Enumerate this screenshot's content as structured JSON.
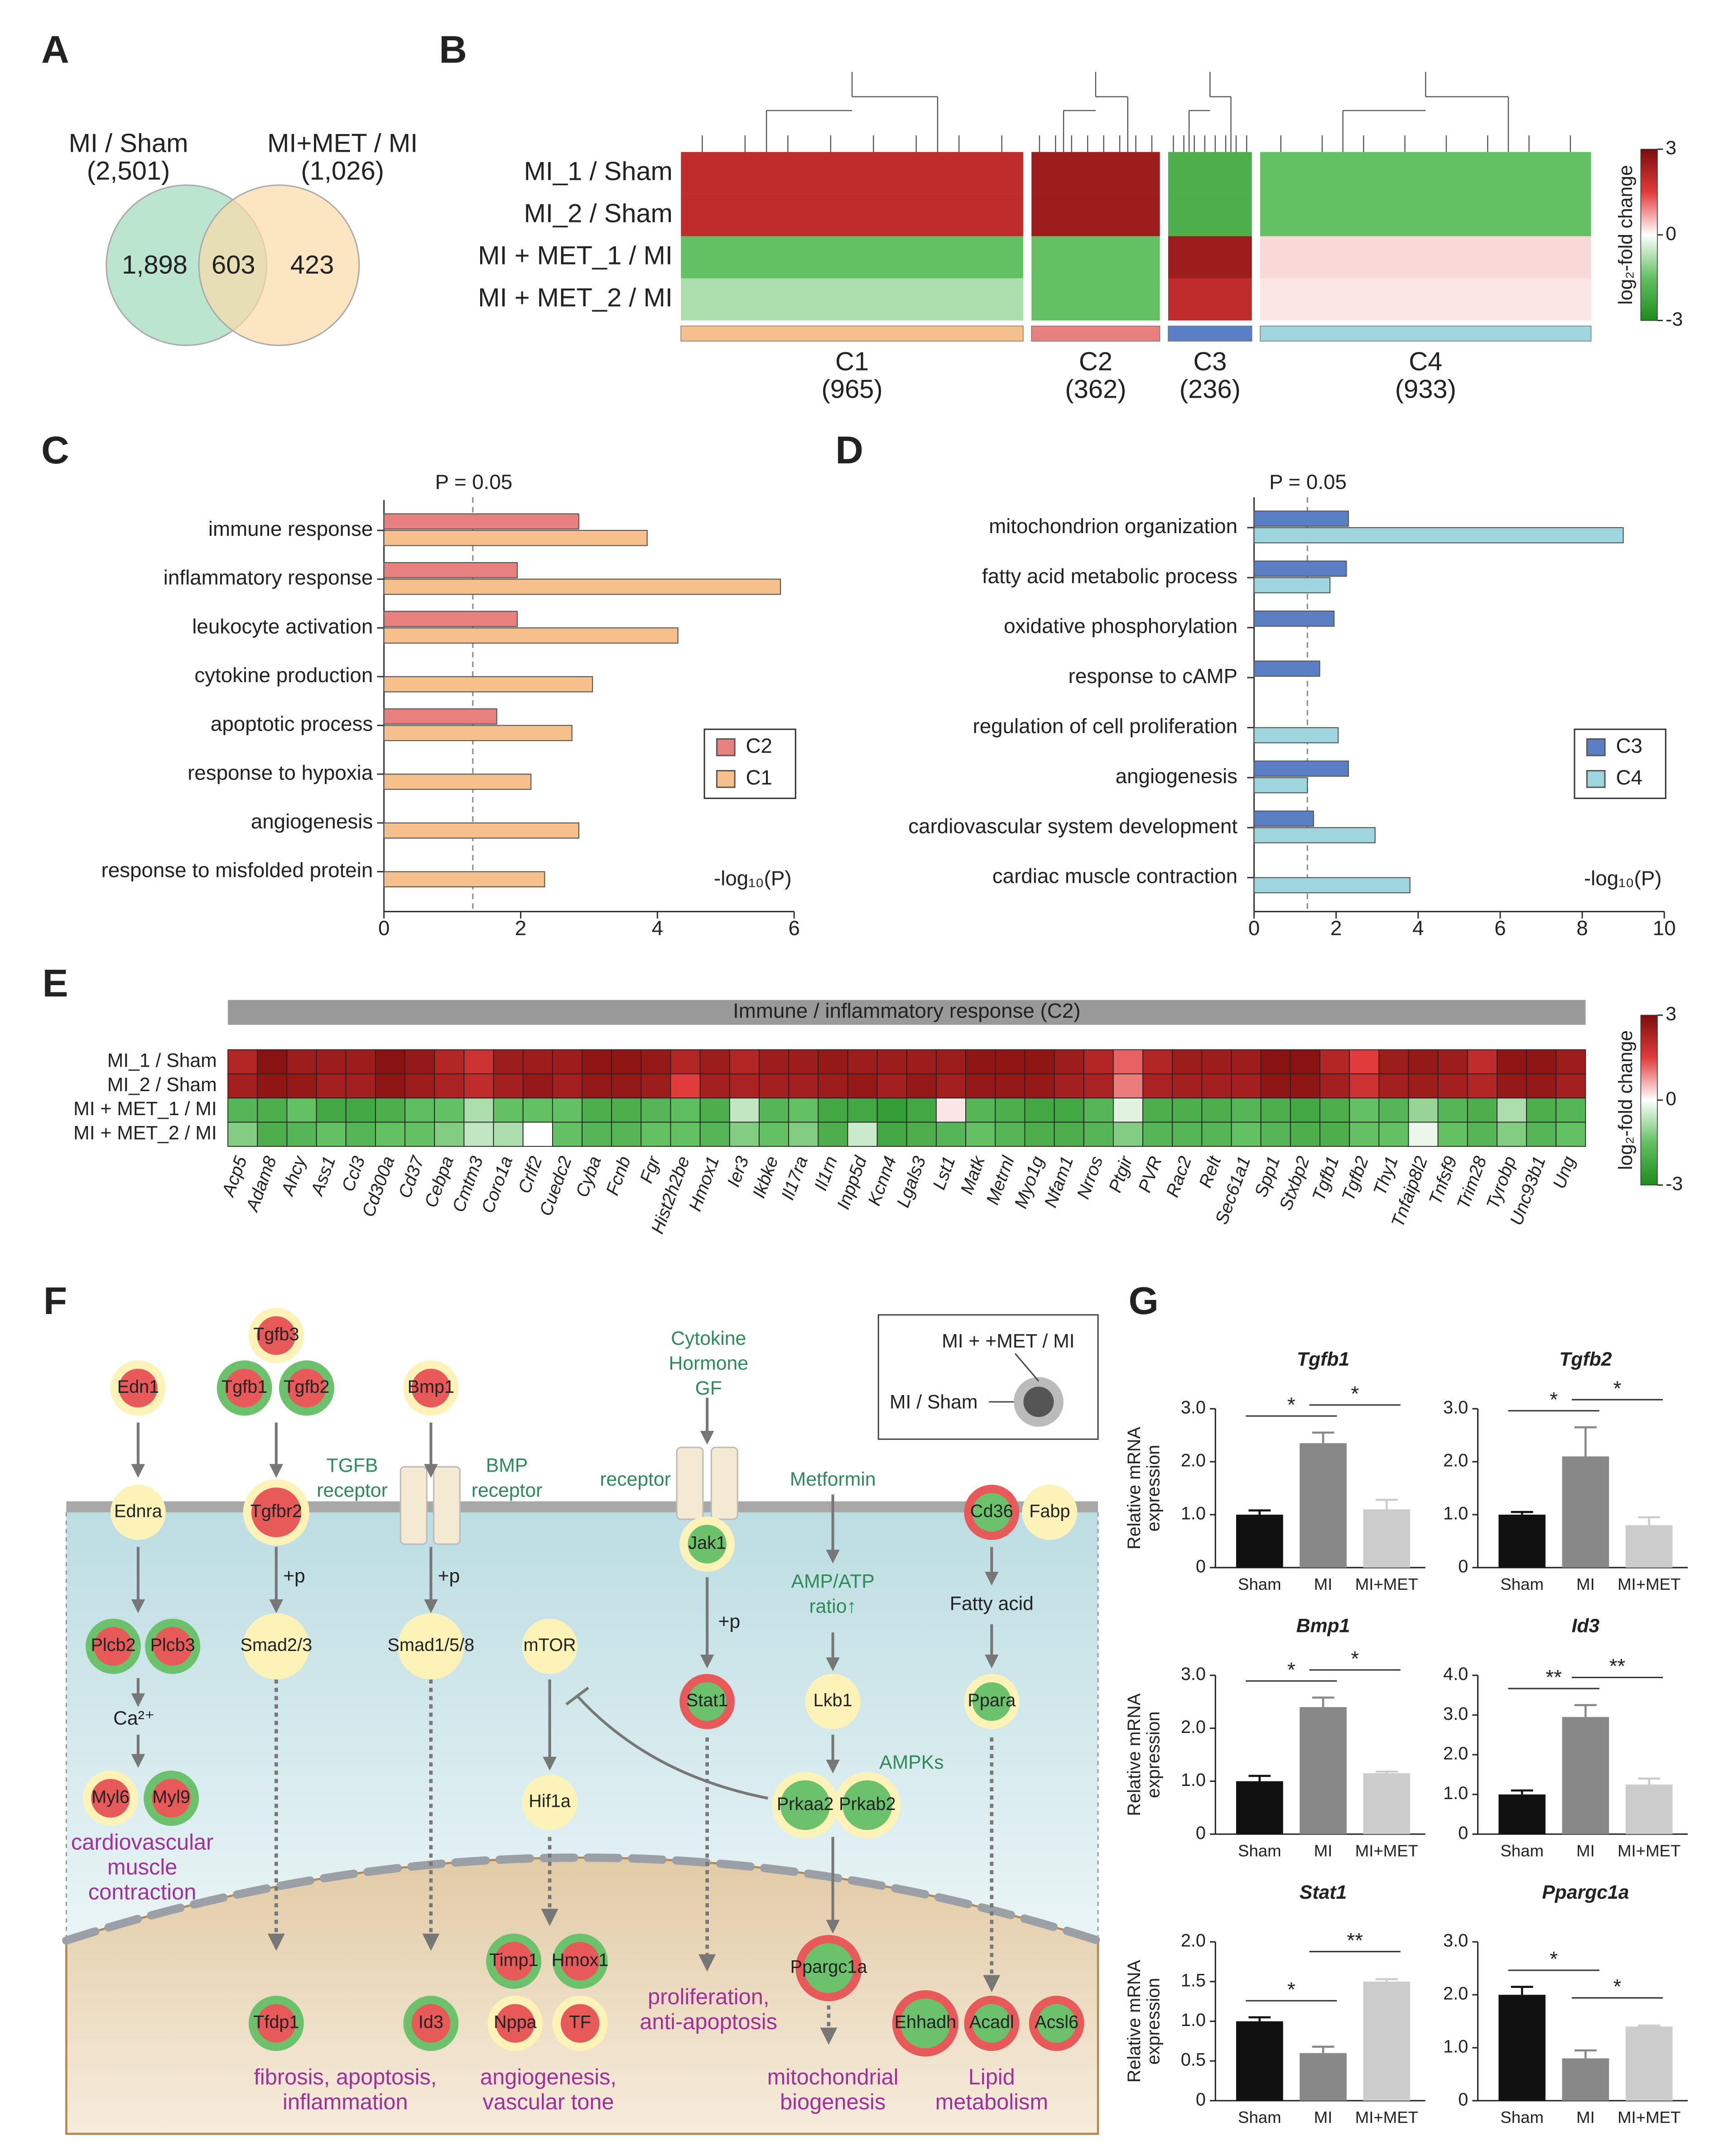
{
  "panel_labels": [
    "A",
    "B",
    "C",
    "D",
    "E",
    "F",
    "G"
  ],
  "venn": {
    "left_title": "MI / Sham",
    "left_count": "(2,501)",
    "right_title": "MI+MET / MI",
    "right_count": "(1,026)",
    "left_only": "1,898",
    "overlap": "603",
    "right_only": "423"
  },
  "chart_data": [
    {
      "type": "hbar",
      "categories": [
        "immune response",
        "inflammatory response",
        "leukocyte activation",
        "cytokine production",
        "apoptotic process",
        "response to hypoxia",
        "angiogenesis",
        "response to misfolded protein"
      ],
      "series": [
        {
          "name": "C2",
          "color": "#e8807f",
          "values": [
            2.85,
            1.95,
            1.95,
            null,
            1.65,
            null,
            null,
            null
          ]
        },
        {
          "name": "C1",
          "color": "#f6c08c",
          "values": [
            3.85,
            5.8,
            4.3,
            3.05,
            2.75,
            2.15,
            2.85,
            2.35
          ]
        }
      ],
      "xlim": [
        0,
        6
      ],
      "xticks": [
        0,
        2,
        4,
        6
      ],
      "xlabel": "-log₁₀(P)",
      "threshold": 1.3,
      "threshold_label": "P = 0.05",
      "legend": "right"
    },
    {
      "type": "hbar",
      "categories": [
        "mitochondrion organization",
        "fatty acid metabolic process",
        "oxidative phosphorylation",
        "response to cAMP",
        "regulation of cell proliferation",
        "angiogenesis",
        "cardiovascular system development",
        "cardiac muscle contraction"
      ],
      "series": [
        {
          "name": "C3",
          "color": "#5b7fc4",
          "values": [
            2.3,
            2.25,
            1.95,
            1.6,
            null,
            2.3,
            1.45,
            null
          ]
        },
        {
          "name": "C4",
          "color": "#9fd6dd",
          "values": [
            9.0,
            1.85,
            null,
            null,
            2.05,
            1.3,
            2.95,
            3.8
          ]
        }
      ],
      "xlim": [
        0,
        10
      ],
      "xticks": [
        0,
        2,
        4,
        6,
        8,
        10
      ],
      "xlabel": "-log₁₀(P)",
      "threshold": 1.3,
      "threshold_label": "P = 0.05",
      "legend": "right"
    },
    {
      "type": "heatmap",
      "rows": [
        "MI_1 / Sham",
        "MI_2 / Sham",
        "MI + MET_1 / MI",
        "MI + MET_2 / MI"
      ],
      "columns": [
        "C1",
        "C2",
        "C3",
        "C4"
      ],
      "counts": [
        965,
        362,
        236,
        933
      ],
      "count_labels": [
        "(965)",
        "(362)",
        "(236)",
        "(933)"
      ],
      "column_colors": [
        "#f6c08c",
        "#e8807f",
        "#5b7fc4",
        "#9fd6dd"
      ],
      "values": [
        [
          2.0,
          2.5,
          -2.0,
          -1.5
        ],
        [
          2.0,
          2.5,
          -2.0,
          -1.5
        ],
        [
          -1.5,
          -1.5,
          2.5,
          0.3
        ],
        [
          -0.8,
          -1.5,
          2.0,
          0.2
        ]
      ],
      "colorbar": {
        "lim": [
          -3,
          3
        ],
        "ticks": [
          3,
          0,
          -3
        ],
        "label": "log₂-fold change"
      }
    },
    {
      "type": "heatmap",
      "title": "Immune / inflammatory response (C2)",
      "rows": [
        "MI_1 / Sham",
        "MI_2 / Sham",
        "MI + MET_1 / MI",
        "MI + MET_2 / MI"
      ],
      "columns": [
        "Acp5",
        "Adam8",
        "Ahcy",
        "Ass1",
        "Ccl3",
        "Cd300a",
        "Cd37",
        "Cebpa",
        "Cmtm3",
        "Coro1a",
        "Crlf2",
        "Cuedc2",
        "Cyba",
        "Fcnb",
        "Fgr",
        "Hist2h2be",
        "Hmox1",
        "Ier3",
        "Ikbke",
        "Il17ra",
        "Il1rn",
        "Inpp5d",
        "Kcnn4",
        "Lgals3",
        "Lst1",
        "Matk",
        "Metrnl",
        "Myo1g",
        "Nfam1",
        "Nrros",
        "Ptgir",
        "PVR",
        "Rac2",
        "Relt",
        "Sec61a1",
        "Spp1",
        "Stxbp2",
        "Tgfb1",
        "Tgfb2",
        "Thy1",
        "Tnfaip8l2",
        "Tnfsf9",
        "Trim28",
        "Tyrobp",
        "Unc93b1",
        "Ung"
      ],
      "values": [
        [
          2.2,
          2.8,
          2.5,
          2.5,
          2.5,
          2.8,
          2.6,
          2.2,
          1.8,
          2.5,
          2.5,
          2.5,
          2.7,
          2.7,
          2.6,
          2.2,
          2.5,
          2.2,
          2.5,
          2.5,
          2.6,
          2.5,
          2.5,
          2.5,
          2.5,
          2.7,
          2.7,
          2.7,
          2.5,
          2.2,
          1.2,
          2.2,
          2.5,
          2.5,
          2.5,
          2.8,
          2.8,
          2.2,
          1.5,
          2.5,
          2.6,
          2.5,
          2.0,
          2.7,
          2.7,
          2.5
        ],
        [
          2.4,
          2.7,
          2.6,
          2.4,
          2.4,
          2.7,
          2.5,
          2.3,
          2.0,
          2.4,
          2.6,
          2.4,
          2.6,
          2.6,
          2.5,
          1.5,
          2.4,
          2.3,
          2.4,
          2.4,
          2.5,
          2.6,
          2.4,
          2.6,
          2.4,
          2.6,
          2.6,
          2.6,
          2.4,
          2.3,
          1.0,
          2.3,
          2.4,
          2.4,
          2.4,
          2.7,
          2.7,
          2.4,
          1.8,
          2.4,
          2.5,
          2.4,
          2.2,
          2.6,
          2.6,
          2.4
        ],
        [
          -1.8,
          -2.0,
          -1.5,
          -2.2,
          -2.2,
          -2.0,
          -1.6,
          -1.5,
          -0.8,
          -1.5,
          -1.5,
          -1.5,
          -2.0,
          -2.0,
          -1.8,
          -1.6,
          -2.0,
          -0.6,
          -1.8,
          -1.5,
          -2.2,
          -2.2,
          -2.5,
          -2.2,
          0.2,
          -1.8,
          -2.0,
          -2.2,
          -2.2,
          -1.8,
          -0.3,
          -2.0,
          -2.0,
          -2.0,
          -1.8,
          -2.0,
          -2.2,
          -2.0,
          -1.5,
          -1.8,
          -1.0,
          -1.8,
          -2.0,
          -0.8,
          -2.0,
          -1.8
        ],
        [
          -1.2,
          -2.0,
          -1.8,
          -1.5,
          -1.8,
          -1.5,
          -1.5,
          -1.2,
          -0.6,
          -0.8,
          0,
          -1.5,
          -1.8,
          -1.8,
          -1.5,
          -1.5,
          -1.8,
          -1.2,
          -1.5,
          -1.2,
          -2.0,
          -0.5,
          -2.2,
          -2.0,
          -1.8,
          -1.5,
          -1.8,
          -2.0,
          -2.0,
          -1.8,
          -1.2,
          -1.8,
          -1.8,
          -1.8,
          -1.5,
          -1.8,
          -2.0,
          -2.0,
          -1.5,
          -1.5,
          -0.2,
          -1.5,
          -1.8,
          -1.2,
          -1.8,
          -1.5
        ]
      ],
      "colorbar": {
        "lim": [
          -3,
          3
        ],
        "ticks": [
          3,
          0,
          -3
        ],
        "label": "log₂-fold change"
      }
    },
    {
      "type": "bar",
      "title": "Tgfb1",
      "categories": [
        "Sham",
        "MI",
        "MI+MET"
      ],
      "values": [
        1.0,
        2.35,
        1.1
      ],
      "errors": [
        0.08,
        0.2,
        0.18
      ],
      "colors": [
        "#111111",
        "#888888",
        "#cccccc"
      ],
      "ylim": [
        0,
        3
      ],
      "yticks": [
        0,
        {
          "value": 1,
          "label": "1.0"
        },
        {
          "value": 2,
          "label": "2.0"
        },
        {
          "value": 3,
          "label": "3.0"
        }
      ],
      "ylabel": [
        "Relative mRNA",
        "expression"
      ],
      "significance": [
        "*",
        "*"
      ]
    },
    {
      "type": "bar",
      "title": "Tgfb2",
      "categories": [
        "Sham",
        "MI",
        "MI+MET"
      ],
      "values": [
        1.0,
        2.1,
        0.8
      ],
      "errors": [
        0.05,
        0.55,
        0.15
      ],
      "colors": [
        "#111111",
        "#888888",
        "#cccccc"
      ],
      "ylim": [
        0,
        3
      ],
      "yticks": [
        0,
        {
          "value": 1,
          "label": "1.0"
        },
        {
          "value": 2,
          "label": "2.0"
        },
        {
          "value": 3,
          "label": "3.0"
        }
      ],
      "significance": [
        "*",
        "*"
      ]
    },
    {
      "type": "bar",
      "title": "Bmp1",
      "categories": [
        "Sham",
        "MI",
        "MI+MET"
      ],
      "values": [
        1.0,
        2.4,
        1.15
      ],
      "errors": [
        0.1,
        0.18,
        0.03
      ],
      "colors": [
        "#111111",
        "#888888",
        "#cccccc"
      ],
      "ylim": [
        0,
        3
      ],
      "yticks": [
        0,
        {
          "value": 1,
          "label": "1.0"
        },
        {
          "value": 2,
          "label": "2.0"
        },
        {
          "value": 3,
          "label": "3.0"
        }
      ],
      "ylabel": [
        "Relative mRNA",
        "expression"
      ],
      "significance": [
        "*",
        "*"
      ]
    },
    {
      "type": "bar",
      "title": "Id3",
      "categories": [
        "Sham",
        "MI",
        "MI+MET"
      ],
      "values": [
        1.0,
        2.95,
        1.25
      ],
      "errors": [
        0.1,
        0.3,
        0.15
      ],
      "colors": [
        "#111111",
        "#888888",
        "#cccccc"
      ],
      "ylim": [
        0,
        4
      ],
      "yticks": [
        0,
        {
          "value": 1,
          "label": "1.0"
        },
        {
          "value": 2,
          "label": "2.0"
        },
        {
          "value": 3,
          "label": "3.0"
        },
        {
          "value": 4,
          "label": "4.0"
        }
      ],
      "significance": [
        "**",
        "**"
      ]
    },
    {
      "type": "bar",
      "title": "Stat1",
      "categories": [
        "Sham",
        "MI",
        "MI+MET"
      ],
      "values": [
        1.0,
        0.6,
        1.5
      ],
      "errors": [
        0.05,
        0.08,
        0.03
      ],
      "colors": [
        "#111111",
        "#888888",
        "#cccccc"
      ],
      "ylim": [
        0,
        2
      ],
      "yticks": [
        0,
        0.5,
        {
          "value": 1,
          "label": "1.0"
        },
        1.5,
        {
          "value": 2,
          "label": "2.0"
        }
      ],
      "ylabel": [
        "Relative mRNA",
        "expression"
      ],
      "significance": [
        "*",
        "**"
      ]
    },
    {
      "type": "bar",
      "title": "Ppargc1a",
      "categories": [
        "Sham",
        "MI",
        "MI+MET"
      ],
      "values": [
        2.0,
        0.8,
        1.4
      ],
      "errors": [
        0.15,
        0.15,
        0.02
      ],
      "colors": [
        "#111111",
        "#888888",
        "#cccccc"
      ],
      "ylim": [
        0,
        3
      ],
      "yticks": [
        0,
        {
          "value": 1,
          "label": "1.0"
        },
        {
          "value": 2,
          "label": "2.0"
        },
        {
          "value": 3,
          "label": "3.0"
        }
      ],
      "significance": [
        "*",
        "*"
      ]
    }
  ],
  "pathway": {
    "legend": {
      "met_label": "MI + +MET / MI",
      "sham_label": "MI / Sham"
    },
    "nodes": [
      {
        "label": "Edn1",
        "inner": "red",
        "outer": "yellow"
      },
      {
        "label": "Tgfb3",
        "inner": "red",
        "outer": "yellow"
      },
      {
        "label": "Tgfb1",
        "inner": "red",
        "outer": "green"
      },
      {
        "label": "Tgfb2",
        "inner": "red",
        "outer": "green"
      },
      {
        "label": "Bmp1",
        "inner": "red",
        "outer": "yellow"
      },
      {
        "label": "Ednra",
        "inner": "yellow",
        "outer": "yellow"
      },
      {
        "label": "Tgfbr2",
        "inner": "red",
        "outer": "yellow"
      },
      {
        "label": "Jak1",
        "inner": "green",
        "outer": "yellow"
      },
      {
        "label": "Cd36",
        "inner": "green",
        "outer": "red"
      },
      {
        "label": "Fabp",
        "inner": "yellow",
        "outer": "yellow"
      },
      {
        "label": "Plcb2",
        "inner": "red",
        "outer": "green"
      },
      {
        "label": "Plcb3",
        "inner": "red",
        "outer": "green"
      },
      {
        "label": "Smad2/3",
        "inner": "yellow",
        "outer": "yellow"
      },
      {
        "label": "Smad1/5/8",
        "inner": "yellow",
        "outer": "yellow"
      },
      {
        "label": "mTOR",
        "inner": "yellow",
        "outer": "yellow"
      },
      {
        "label": "Stat1",
        "inner": "green",
        "outer": "red"
      },
      {
        "label": "Lkb1",
        "inner": "yellow",
        "outer": "yellow"
      },
      {
        "label": "Ppara",
        "inner": "green",
        "outer": "yellow"
      },
      {
        "label": "Myl6",
        "inner": "red",
        "outer": "yellow"
      },
      {
        "label": "Myl9",
        "inner": "red",
        "outer": "green"
      },
      {
        "label": "Hif1a",
        "inner": "yellow",
        "outer": "yellow"
      },
      {
        "label": "Prkaa2",
        "inner": "green",
        "outer": "yellow"
      },
      {
        "label": "Prkab2",
        "inner": "green",
        "outer": "yellow"
      },
      {
        "label": "Timp1",
        "inner": "red",
        "outer": "green"
      },
      {
        "label": "Hmox1",
        "inner": "red",
        "outer": "green"
      },
      {
        "label": "Ppargc1a",
        "inner": "green",
        "outer": "red"
      },
      {
        "label": "Tfdp1",
        "inner": "red",
        "outer": "green"
      },
      {
        "label": "Id3",
        "inner": "red",
        "outer": "green"
      },
      {
        "label": "Nppa",
        "inner": "red",
        "outer": "yellow"
      },
      {
        "label": "TF",
        "inner": "red",
        "outer": "yellow"
      },
      {
        "label": "Ehhadh",
        "inner": "green",
        "outer": "red"
      },
      {
        "label": "Acadl",
        "inner": "green",
        "outer": "red"
      },
      {
        "label": "Acsl6",
        "inner": "green",
        "outer": "red"
      }
    ],
    "labels": [
      [
        "TGFB",
        "receptor"
      ],
      [
        "BMP",
        "receptor"
      ],
      [
        "Cytokine",
        "Hormone",
        "GF"
      ],
      [
        "receptor"
      ],
      [
        "Metformin"
      ],
      [
        "AMP/ATP",
        "ratio↑"
      ],
      [
        "AMPKs"
      ],
      [
        "+p"
      ],
      [
        "+p"
      ],
      [
        "+p"
      ],
      [
        "Ca²⁺"
      ],
      [
        "Fatty acid"
      ]
    ],
    "outcomes": [
      [
        "cardiovascular",
        "muscle",
        "contraction"
      ],
      [
        "fibrosis, apoptosis,",
        "inflammation"
      ],
      [
        "angiogenesis,",
        "vascular tone"
      ],
      [
        "proliferation,",
        "anti-apoptosis"
      ],
      [
        "mitochondrial",
        "biogenesis"
      ],
      [
        "Lipid",
        "metabolism"
      ]
    ]
  }
}
